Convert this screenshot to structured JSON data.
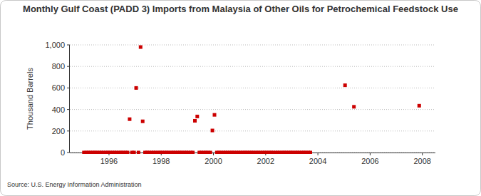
{
  "chart_data": {
    "type": "scatter",
    "title": "Monthly Gulf Coast (PADD 3) Imports from Malaysia of Other Oils for Petrochemical Feedstock Use",
    "y_label": "Thousand Barrels",
    "source": "Source: U.S. Energy Information Administration",
    "marker": "square",
    "color": "#cc0000",
    "grid": true,
    "xlim": [
      1994.5,
      2008.5
    ],
    "xticks": [
      1996,
      1998,
      2000,
      2002,
      2004,
      2006,
      2008
    ],
    "ylim": [
      0,
      1000
    ],
    "yticks": [
      0,
      200,
      400,
      600,
      800,
      {
        "value": 1000,
        "label": "1,000"
      }
    ],
    "x": [
      1995.04,
      1995.13,
      1995.21,
      1995.29,
      1995.38,
      1995.46,
      1995.54,
      1995.63,
      1995.71,
      1995.79,
      1995.88,
      1995.96,
      1996.04,
      1996.13,
      1996.21,
      1996.29,
      1996.38,
      1996.46,
      1996.54,
      1996.63,
      1996.71,
      1996.79,
      1996.88,
      1996.96,
      1997.04,
      1997.13,
      1997.21,
      1997.29,
      1997.38,
      1997.46,
      1997.54,
      1997.63,
      1997.71,
      1997.79,
      1997.88,
      1997.96,
      1998.04,
      1998.13,
      1998.21,
      1998.29,
      1998.38,
      1998.46,
      1998.54,
      1998.63,
      1998.71,
      1998.79,
      1998.88,
      1998.96,
      1999.04,
      1999.13,
      1999.21,
      1999.29,
      1999.38,
      1999.46,
      1999.54,
      1999.63,
      1999.71,
      1999.79,
      1999.88,
      1999.96,
      2000.04,
      2000.13,
      2000.21,
      2000.29,
      2000.38,
      2000.46,
      2000.54,
      2000.63,
      2000.71,
      2000.79,
      2000.88,
      2000.96,
      2001.04,
      2001.13,
      2001.21,
      2001.29,
      2001.38,
      2001.46,
      2001.54,
      2001.63,
      2001.71,
      2001.79,
      2001.88,
      2001.96,
      2002.04,
      2002.13,
      2002.21,
      2002.29,
      2002.38,
      2002.46,
      2002.54,
      2002.63,
      2002.71,
      2002.79,
      2002.88,
      2002.96,
      2003.04,
      2003.13,
      2003.21,
      2003.29,
      2003.38,
      2003.46,
      2003.54,
      2003.63,
      2003.71,
      2005.04,
      2005.38,
      2007.88
    ],
    "values": [
      0,
      0,
      0,
      0,
      0,
      0,
      0,
      0,
      0,
      0,
      0,
      0,
      0,
      0,
      0,
      0,
      0,
      0,
      0,
      0,
      0,
      310,
      0,
      0,
      600,
      0,
      980,
      290,
      0,
      0,
      0,
      0,
      0,
      0,
      0,
      0,
      0,
      0,
      0,
      0,
      0,
      0,
      0,
      0,
      0,
      0,
      0,
      0,
      0,
      0,
      0,
      295,
      335,
      0,
      0,
      0,
      0,
      0,
      0,
      205,
      350,
      0,
      0,
      0,
      0,
      0,
      0,
      0,
      0,
      0,
      0,
      0,
      0,
      0,
      0,
      0,
      0,
      0,
      0,
      0,
      0,
      0,
      0,
      0,
      0,
      0,
      0,
      0,
      0,
      0,
      0,
      0,
      0,
      0,
      0,
      0,
      0,
      0,
      0,
      0,
      0,
      0,
      0,
      0,
      0,
      625,
      425,
      435
    ]
  }
}
